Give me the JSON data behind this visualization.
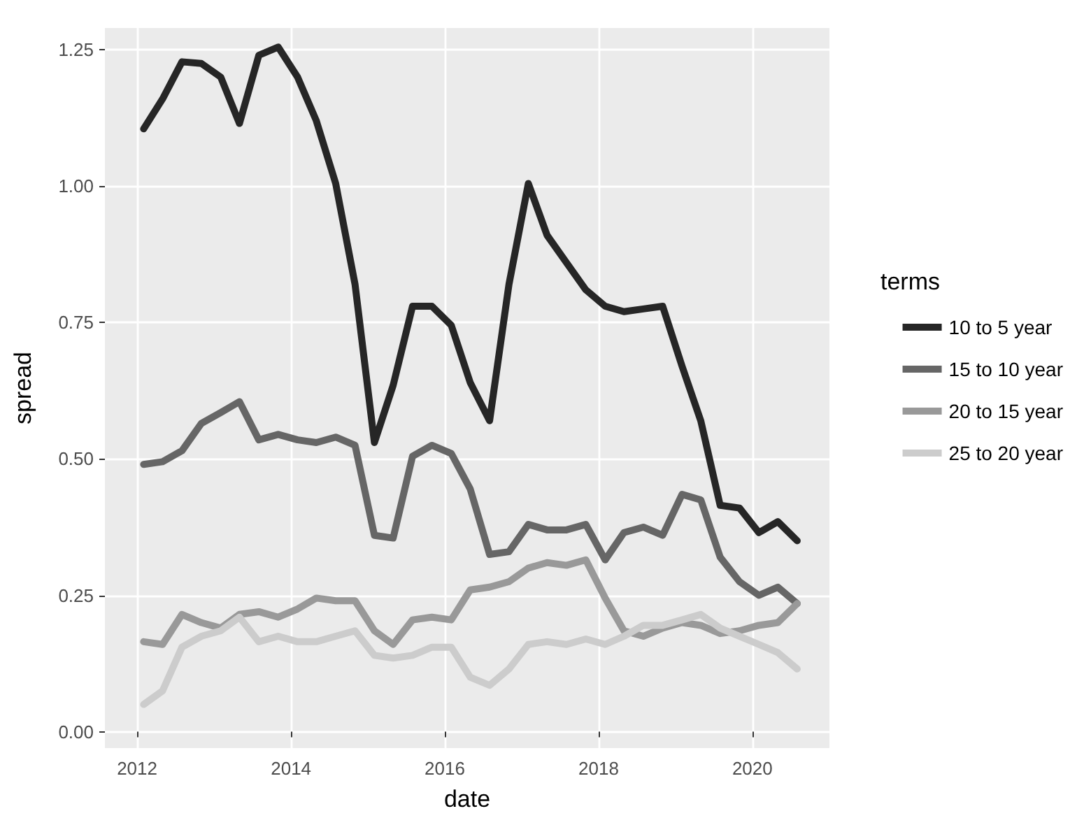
{
  "chart_data": {
    "type": "line",
    "xlabel": "date",
    "ylabel": "spread",
    "legend_title": "terms",
    "x": [
      "2012-02",
      "2012-05",
      "2012-08",
      "2012-11",
      "2013-02",
      "2013-05",
      "2013-08",
      "2013-11",
      "2014-02",
      "2014-05",
      "2014-08",
      "2014-11",
      "2015-02",
      "2015-05",
      "2015-08",
      "2015-11",
      "2016-02",
      "2016-05",
      "2016-08",
      "2016-11",
      "2017-02",
      "2017-05",
      "2017-08",
      "2017-11",
      "2018-02",
      "2018-05",
      "2018-08",
      "2018-11",
      "2019-02",
      "2019-05",
      "2019-08",
      "2019-11",
      "2020-02",
      "2020-05",
      "2020-08"
    ],
    "series": [
      {
        "name": "10 to 5 year",
        "color": "#262626",
        "values": [
          1.105,
          1.16,
          1.228,
          1.225,
          1.2,
          1.115,
          1.24,
          1.255,
          1.2,
          1.12,
          1.005,
          0.82,
          0.53,
          0.635,
          0.78,
          0.78,
          0.745,
          0.64,
          0.57,
          0.82,
          1.005,
          0.91,
          0.86,
          0.81,
          0.78,
          0.77,
          0.775,
          0.78,
          0.67,
          0.57,
          0.415,
          0.41,
          0.365,
          0.385,
          0.35
        ]
      },
      {
        "name": "15 to 10 year",
        "color": "#666666",
        "values": [
          0.49,
          0.495,
          0.515,
          0.565,
          0.585,
          0.605,
          0.535,
          0.545,
          0.535,
          0.53,
          0.54,
          0.525,
          0.36,
          0.355,
          0.505,
          0.525,
          0.51,
          0.445,
          0.325,
          0.33,
          0.38,
          0.37,
          0.37,
          0.38,
          0.315,
          0.365,
          0.375,
          0.36,
          0.435,
          0.425,
          0.32,
          0.275,
          0.25,
          0.265,
          0.235
        ]
      },
      {
        "name": "20 to 15 year",
        "color": "#999999",
        "values": [
          0.165,
          0.16,
          0.215,
          0.2,
          0.19,
          0.215,
          0.22,
          0.21,
          0.225,
          0.245,
          0.24,
          0.24,
          0.185,
          0.16,
          0.205,
          0.21,
          0.205,
          0.26,
          0.265,
          0.275,
          0.3,
          0.31,
          0.305,
          0.315,
          0.245,
          0.185,
          0.175,
          0.19,
          0.2,
          0.195,
          0.18,
          0.185,
          0.195,
          0.2,
          0.235
        ]
      },
      {
        "name": "25 to 20 year",
        "color": "#cccccc",
        "values": [
          0.05,
          0.075,
          0.155,
          0.175,
          0.185,
          0.21,
          0.165,
          0.175,
          0.165,
          0.165,
          0.175,
          0.185,
          0.14,
          0.135,
          0.14,
          0.155,
          0.155,
          0.1,
          0.085,
          0.115,
          0.16,
          0.165,
          0.16,
          0.17,
          0.16,
          0.175,
          0.195,
          0.195,
          0.205,
          0.215,
          0.19,
          0.175,
          0.16,
          0.145,
          0.115
        ]
      }
    ],
    "xlim": [
      "2011-08",
      "2021-01"
    ],
    "xticks": [
      "2012",
      "2014",
      "2016",
      "2018",
      "2020"
    ],
    "ylim": [
      -0.03,
      1.29
    ],
    "yticks": [
      {
        "value": 0,
        "label": "0.00"
      },
      {
        "value": 0.25,
        "label": "0.25"
      },
      {
        "value": 0.5,
        "label": "0.50"
      },
      {
        "value": 0.75,
        "label": "0.75"
      },
      {
        "value": 1,
        "label": "1.00"
      },
      {
        "value": 1.25,
        "label": "1.25"
      }
    ],
    "grid": true,
    "legend": "right",
    "marker": "none",
    "line_style": "solid"
  }
}
